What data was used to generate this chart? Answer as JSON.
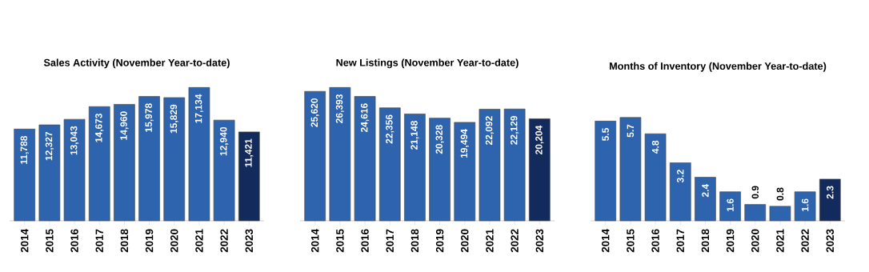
{
  "chart_data": [
    {
      "type": "bar",
      "title": "Sales Activity (November Year-to-date)",
      "categories": [
        "2014",
        "2015",
        "2016",
        "2017",
        "2018",
        "2019",
        "2020",
        "2021",
        "2022",
        "2023"
      ],
      "values": [
        11788,
        12327,
        13043,
        14673,
        14960,
        15978,
        15829,
        17134,
        12940,
        11421
      ],
      "value_labels": [
        "11,788",
        "12,327",
        "13,043",
        "14,673",
        "14,960",
        "15,978",
        "15,829",
        "17,134",
        "12,940",
        "11,421"
      ],
      "colors": [
        "#2e63ad",
        "#2e63ad",
        "#2e63ad",
        "#2e63ad",
        "#2e63ad",
        "#2e63ad",
        "#2e63ad",
        "#2e63ad",
        "#2e63ad",
        "#132a5c"
      ]
    },
    {
      "type": "bar",
      "title": "New Listings (November Year-to-date)",
      "categories": [
        "2014",
        "2015",
        "2016",
        "2017",
        "2018",
        "2019",
        "2020",
        "2021",
        "2022",
        "2023"
      ],
      "values": [
        25620,
        26393,
        24616,
        22356,
        21148,
        20328,
        19494,
        22092,
        22129,
        20204
      ],
      "value_labels": [
        "25,620",
        "26,393",
        "24,616",
        "22,356",
        "21,148",
        "20,328",
        "19,494",
        "22,092",
        "22,129",
        "20,204"
      ],
      "colors": [
        "#2e63ad",
        "#2e63ad",
        "#2e63ad",
        "#2e63ad",
        "#2e63ad",
        "#2e63ad",
        "#2e63ad",
        "#2e63ad",
        "#2e63ad",
        "#132a5c"
      ]
    },
    {
      "type": "bar",
      "title": "Months of Inventory   (November Year-to-date)",
      "categories": [
        "2014",
        "2015",
        "2016",
        "2017",
        "2018",
        "2019",
        "2020",
        "2021",
        "2022",
        "2023"
      ],
      "values": [
        5.5,
        5.7,
        4.8,
        3.2,
        2.4,
        1.6,
        0.9,
        0.8,
        1.6,
        2.3
      ],
      "data_labels": true,
      "colors": [
        "#2e63ad",
        "#2e63ad",
        "#2e63ad",
        "#2e63ad",
        "#2e63ad",
        "#2e63ad",
        "#2e63ad",
        "#2e63ad",
        "#2e63ad",
        "#132a5c"
      ]
    }
  ]
}
